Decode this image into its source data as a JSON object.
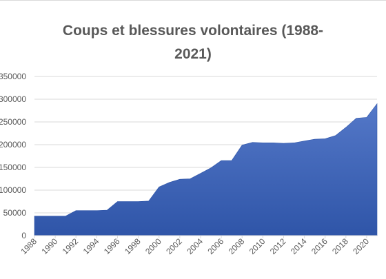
{
  "chart_data": {
    "type": "area",
    "title": "Coups et blessures volontaires (1988-\n2021)",
    "xlabel": "",
    "ylabel": "",
    "ylim": [
      0,
      350000
    ],
    "yticks": [
      {
        "value": 0,
        "label": "0"
      },
      {
        "value": 50000,
        "label": "50000"
      },
      {
        "value": 100000,
        "label": "100000"
      },
      {
        "value": 150000,
        "label": "150000"
      },
      {
        "value": 200000,
        "label": "200000"
      },
      {
        "value": 250000,
        "label": "250000"
      },
      {
        "value": 300000,
        "label": "300000"
      },
      {
        "value": 350000,
        "label": "350000"
      }
    ],
    "xlim": [
      1988,
      2021
    ],
    "xticks": [
      "1988",
      "1990",
      "1992",
      "1994",
      "1996",
      "1998",
      "2000",
      "2002",
      "2004",
      "2006",
      "2008",
      "2010",
      "2012",
      "2014",
      "2016",
      "2018",
      "2020"
    ],
    "grid": true,
    "colors": {
      "fill_top": "#5478c8",
      "fill_bottom": "#2f55a8",
      "grid": "#d9d9d9",
      "text": "#595959"
    },
    "x": [
      1988,
      1989,
      1990,
      1991,
      1992,
      1993,
      1994,
      1995,
      1996,
      1997,
      1998,
      1999,
      2000,
      2001,
      2002,
      2003,
      2004,
      2005,
      2006,
      2007,
      2008,
      2009,
      2010,
      2011,
      2012,
      2013,
      2014,
      2015,
      2016,
      2017,
      2018,
      2019,
      2020,
      2021
    ],
    "values": [
      43000,
      43000,
      43000,
      43000,
      55000,
      55000,
      55000,
      56000,
      75000,
      75000,
      75000,
      76000,
      107000,
      117000,
      124000,
      125000,
      137000,
      149000,
      165000,
      165000,
      199000,
      205000,
      204000,
      204000,
      203000,
      204000,
      208000,
      212000,
      213000,
      220000,
      238000,
      258000,
      260000,
      290000
    ]
  }
}
